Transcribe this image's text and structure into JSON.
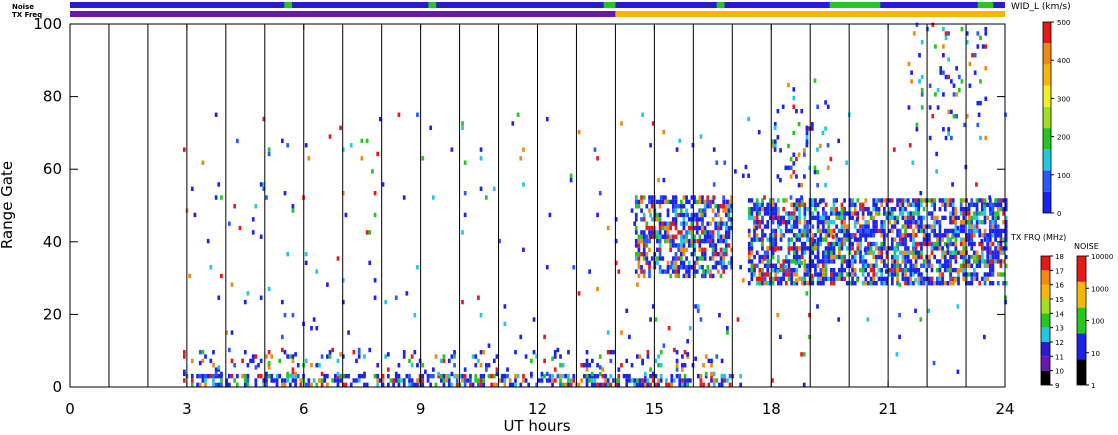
{
  "chart_data": {
    "type": "heatmap",
    "title": "",
    "xlabel": "UT hours",
    "ylabel": "Range Gate",
    "xlim": [
      0,
      24
    ],
    "ylim": [
      0,
      100
    ],
    "x_ticks": [
      "0",
      "3",
      "6",
      "9",
      "12",
      "15",
      "18",
      "21",
      "24"
    ],
    "y_ticks": [
      "0",
      "20",
      "40",
      "60",
      "80",
      "100"
    ],
    "hour_lines": [
      1,
      2,
      3,
      4,
      5,
      6,
      7,
      8,
      9,
      10,
      11,
      12,
      13,
      14,
      15,
      16,
      17,
      18,
      19,
      20,
      21,
      22,
      23
    ],
    "strip_labels": {
      "noise": "Noise",
      "txfreq": "TX Freq"
    },
    "noise_strip": [
      {
        "from": 0,
        "to": 24,
        "color": "#2a1ad8"
      },
      {
        "from": 5.5,
        "to": 5.7,
        "color": "#22c81e"
      },
      {
        "from": 9.2,
        "to": 9.4,
        "color": "#22c81e"
      },
      {
        "from": 13.7,
        "to": 14.0,
        "color": "#22c81e"
      },
      {
        "from": 16.6,
        "to": 16.8,
        "color": "#22c81e"
      },
      {
        "from": 19.5,
        "to": 20.8,
        "color": "#22c81e"
      },
      {
        "from": 23.3,
        "to": 23.7,
        "color": "#22c81e"
      }
    ],
    "txfreq_strip": [
      {
        "from": 0,
        "to": 14,
        "color": "#6a16b0"
      },
      {
        "from": 14,
        "to": 24,
        "color": "#f5b800"
      }
    ],
    "scatter_colors": [
      "#1a22f0",
      "#1a22f0",
      "#1a22f0",
      "#2858ff",
      "#1a22f0",
      "#e81818",
      "#22c8e0",
      "#22c81e",
      "#f08a10"
    ],
    "echo_regions": [
      {
        "t0": 2.9,
        "t1": 17.0,
        "g0": 0,
        "g1": 3,
        "density": 0.55
      },
      {
        "t0": 2.9,
        "t1": 17.0,
        "g0": 3,
        "g1": 10,
        "density": 0.12
      },
      {
        "t0": 14.5,
        "t1": 17.0,
        "g0": 30,
        "g1": 52,
        "density": 0.6
      },
      {
        "t0": 17.4,
        "t1": 24.0,
        "g0": 28,
        "g1": 52,
        "density": 0.65
      },
      {
        "t0": 18.0,
        "t1": 19.5,
        "g0": 55,
        "g1": 85,
        "density": 0.12
      },
      {
        "t0": 21.5,
        "t1": 23.5,
        "g0": 68,
        "g1": 100,
        "density": 0.1
      }
    ],
    "sparse_noise": {
      "t0": 2.9,
      "t1": 24.0,
      "g0": 0,
      "g1": 75,
      "density": 0.015
    },
    "width_scale": {
      "label": "WID_L (km/s)",
      "ticks": [
        "0",
        "100",
        "200",
        "300",
        "400",
        "500"
      ],
      "colors": [
        "#1a22f0",
        "#2858ff",
        "#22c8e0",
        "#22c81e",
        "#a0e020",
        "#f0f020",
        "#f5b800",
        "#f08a10",
        "#e81818"
      ]
    },
    "tx_scale": {
      "label": "TX FRQ (MHz)",
      "ticks": [
        "9",
        "10",
        "11",
        "12",
        "13",
        "14",
        "15",
        "16",
        "17",
        "18"
      ],
      "colors": [
        "#000000",
        "#6a16b0",
        "#2a1ad8",
        "#22c8e0",
        "#22c81e",
        "#a0e020",
        "#f5b800",
        "#f08a10",
        "#e81818"
      ]
    },
    "noise_scale": {
      "label": "NOISE",
      "ticks": [
        "1",
        "10",
        "100",
        "1000",
        "10000"
      ],
      "colors": [
        "#000000",
        "#1a22f0",
        "#22c81e",
        "#f5b800",
        "#e81818"
      ]
    }
  }
}
